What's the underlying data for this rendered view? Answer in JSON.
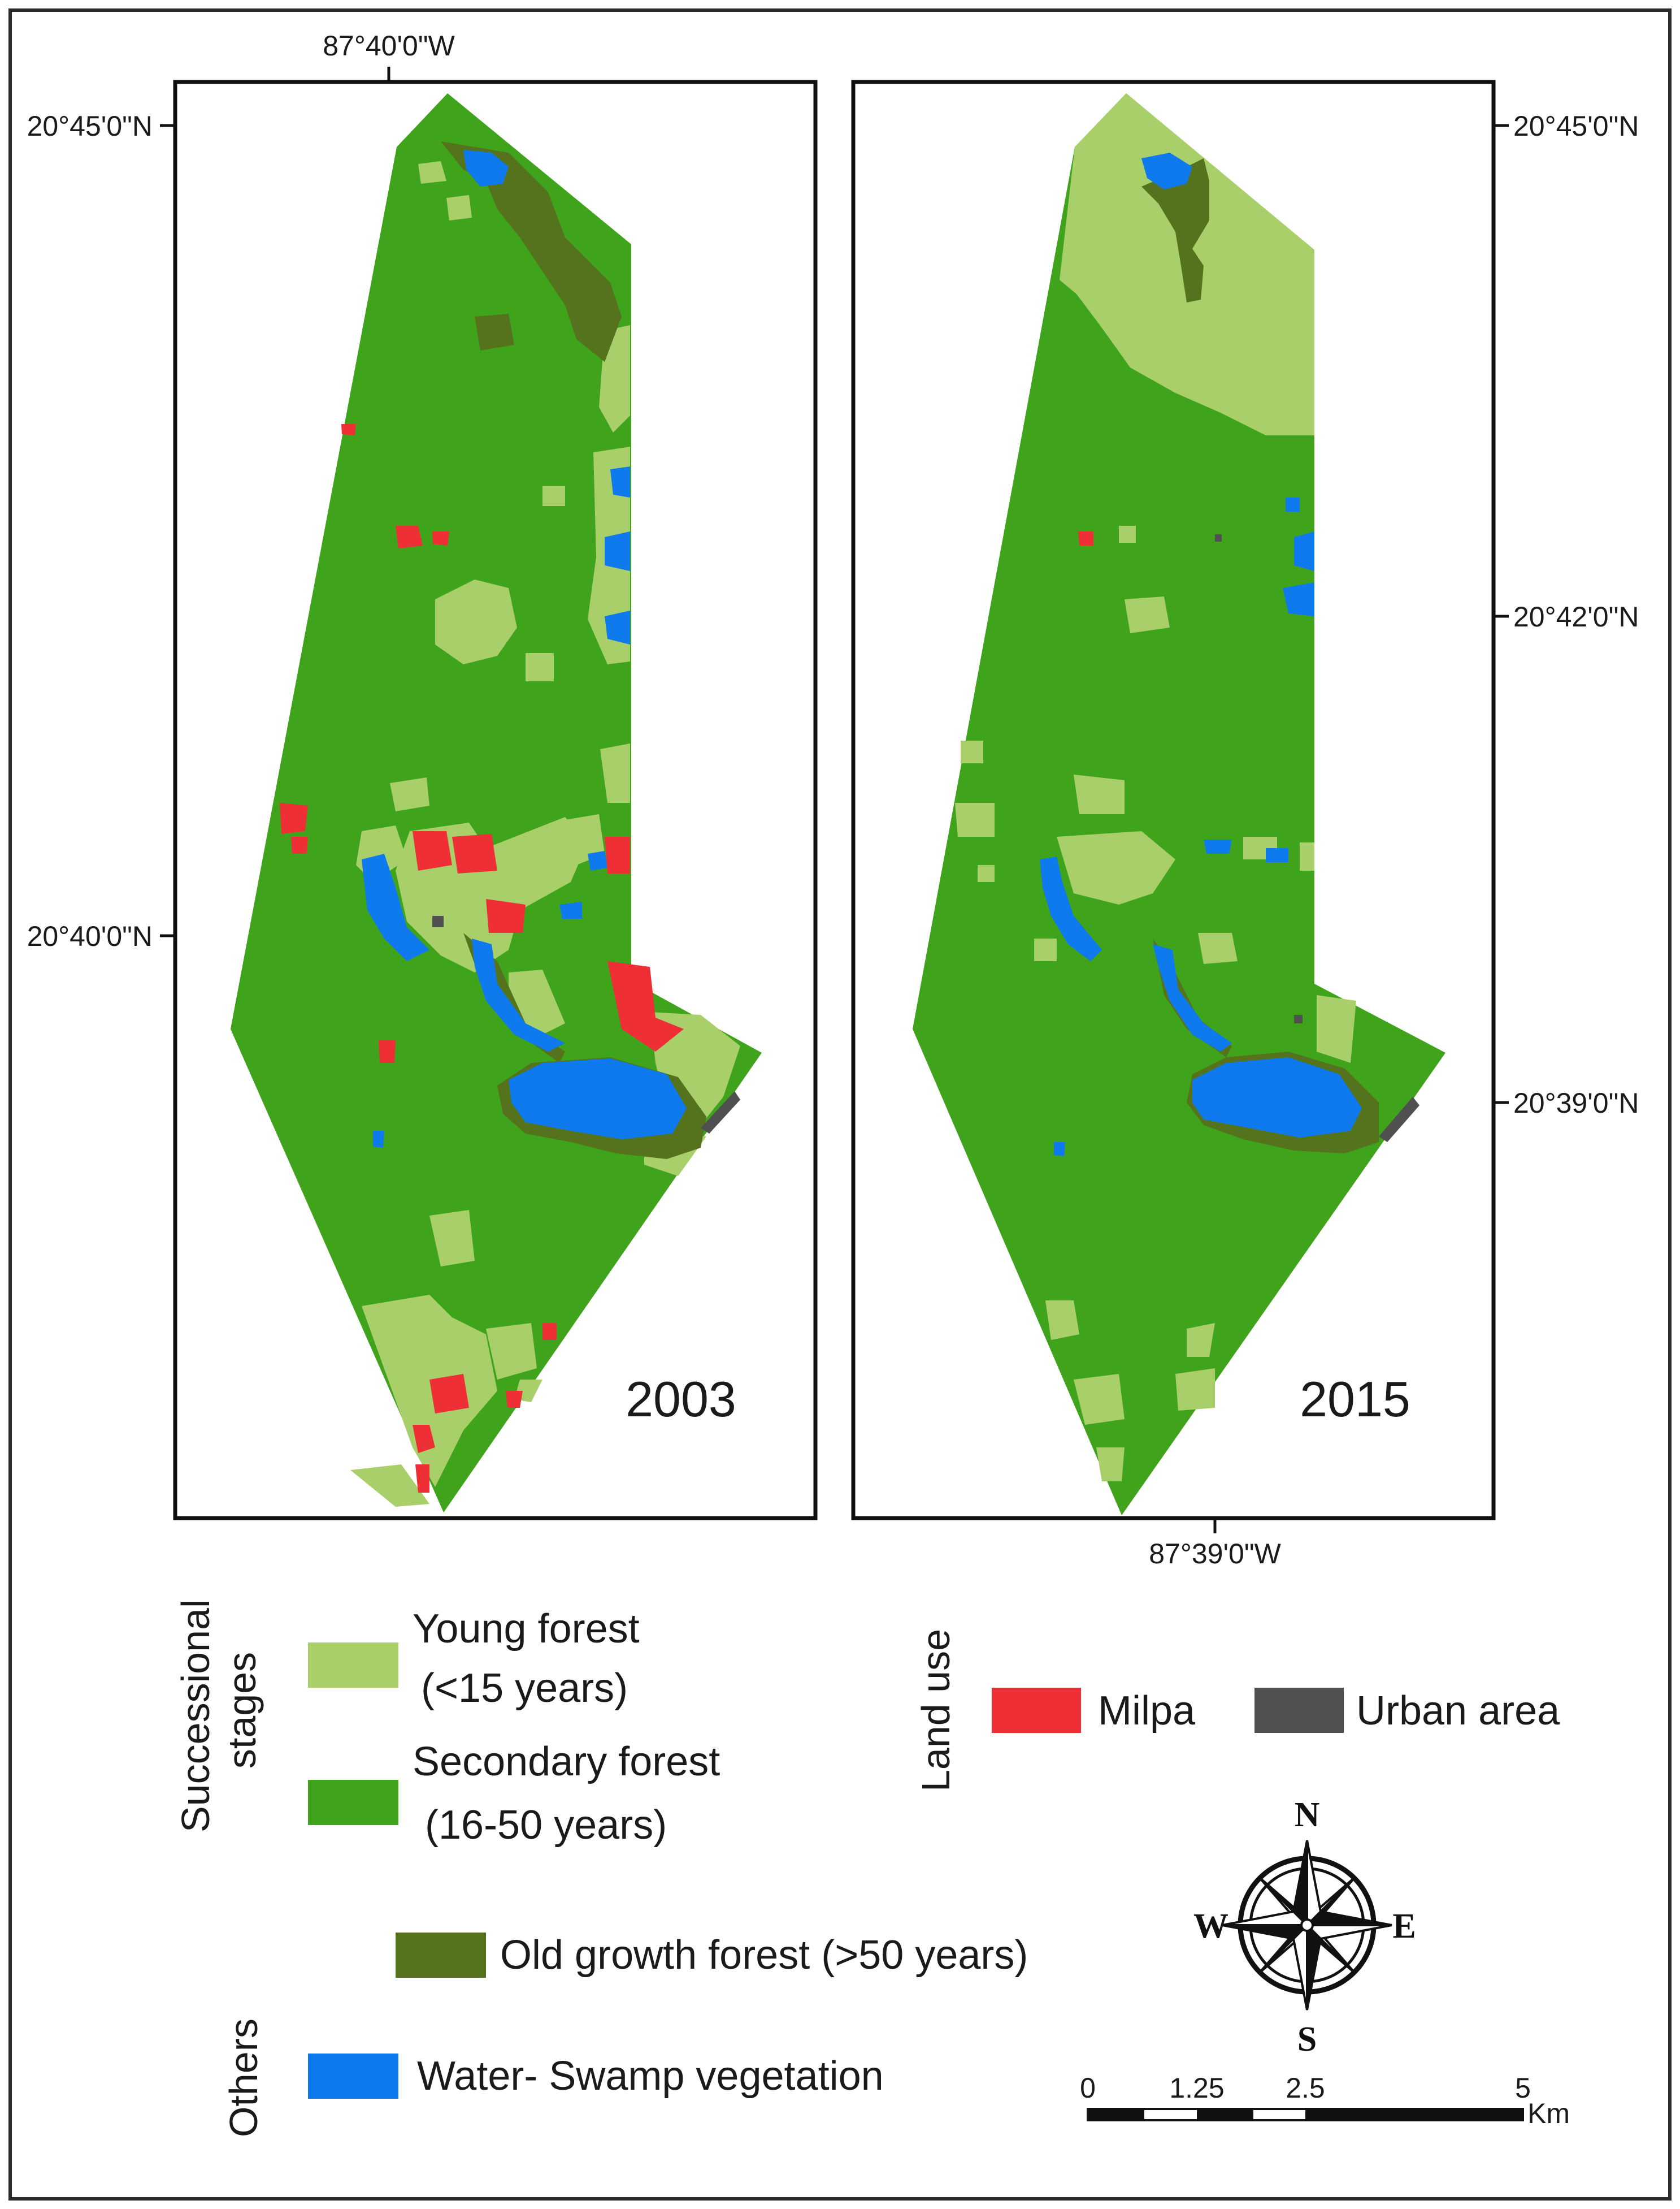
{
  "maps": [
    {
      "year_label": "2003",
      "coordinate_labels": {
        "top_longitude": "87°40'0\"W",
        "left_latitudes": [
          "20°45'0\"N",
          "20°40'0\"N"
        ]
      }
    },
    {
      "year_label": "2015",
      "coordinate_labels": {
        "bottom_longitude": "87°39'0\"W",
        "right_latitudes": [
          "20°45'0\"N",
          "20°42'0\"N",
          "20°39'0\"N"
        ]
      }
    }
  ],
  "legend": {
    "successional_stages": {
      "group_label": "Successional stages",
      "group_label_lines": [
        "Successional",
        "stages"
      ],
      "items": [
        {
          "label_lines": [
            "Young forest",
            "(<15 years)"
          ],
          "color": "#a8cf6a"
        },
        {
          "label_lines": [
            "Secondary forest",
            "(16-50 years)"
          ],
          "color": "#3fa31c"
        },
        {
          "label_lines": [
            "Old growth forest (>50 years)"
          ],
          "color": "#55731c"
        }
      ]
    },
    "land_use": {
      "group_label": "Land use",
      "items": [
        {
          "label": "Milpa",
          "color": "#ee2f36"
        },
        {
          "label": "Urban area",
          "color": "#505050"
        }
      ]
    },
    "others": {
      "group_label": "Others",
      "items": [
        {
          "label": "Water- Swamp vegetation",
          "color": "#0f79ee"
        }
      ]
    }
  },
  "compass": {
    "north": "N",
    "south": "S",
    "east": "E",
    "west": "W"
  },
  "scale_bar": {
    "tick_labels": [
      "0",
      "1.25",
      "2.5",
      "5"
    ],
    "unit": "Km"
  }
}
